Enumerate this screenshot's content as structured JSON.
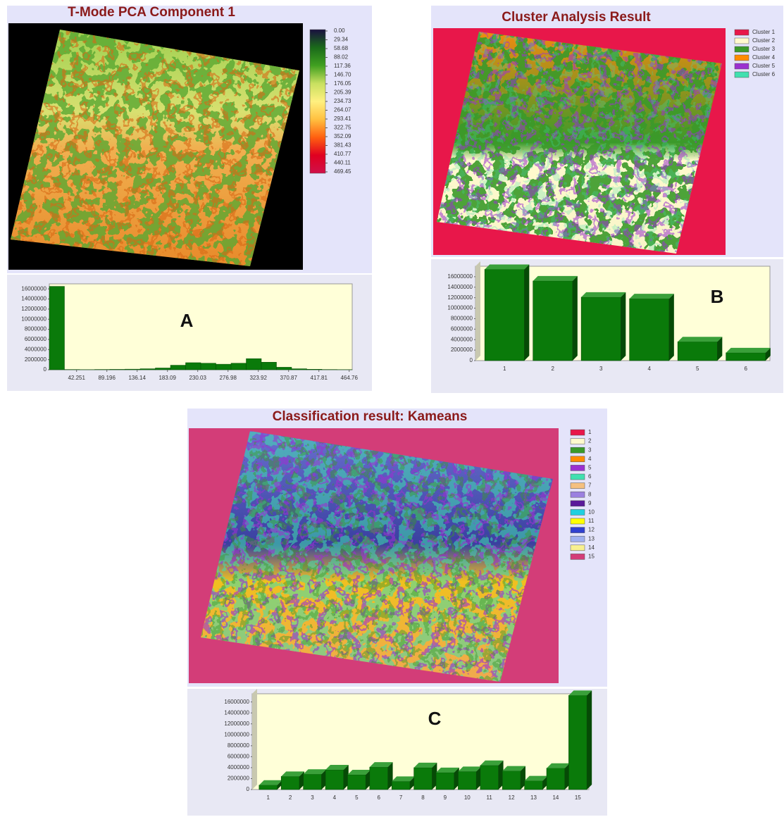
{
  "chart_data": [
    {
      "type": "histogram",
      "title": "T-Mode PCA Component 1",
      "label": "A",
      "colorbar_lim": [
        0,
        469.45
      ],
      "colorbar_colors": [
        "#1a1040",
        "#1a6a1a",
        "#40a020",
        "#c8e060",
        "#fff080",
        "#ffc040",
        "#ff6010",
        "#e00020",
        "#d0104a"
      ],
      "colorbar_ticks": [
        {
          "value": 0,
          "label": "0.00"
        },
        29.34,
        58.68,
        88.02,
        117.36,
        {
          "value": 146.7,
          "label": "146.70"
        },
        176.05,
        205.39,
        234.73,
        264.07,
        293.41,
        322.75,
        352.09,
        381.43,
        410.77,
        440.11,
        469.45
      ],
      "bins": [
        0,
        23.47,
        46.95,
        70.42,
        93.89,
        117.36,
        140.84,
        164.31,
        187.78,
        211.25,
        234.73,
        258.2,
        281.67,
        305.14,
        328.62,
        352.09,
        375.56,
        399.03,
        422.51,
        445.98,
        469.45
      ],
      "values": [
        16500000,
        50000,
        30000,
        60000,
        80000,
        120000,
        200000,
        350000,
        900000,
        1400000,
        1300000,
        1100000,
        1300000,
        2200000,
        1500000,
        500000,
        200000,
        100000,
        50000,
        30000
      ],
      "color": "#0a7a0a",
      "xlim": [
        0,
        469.45
      ],
      "xticks": [
        42.251,
        89.196,
        136.14,
        183.09,
        230.03,
        276.98,
        323.92,
        370.87,
        417.81,
        464.76
      ],
      "ylim": [
        0,
        17000000
      ],
      "yticks": [
        0,
        2000000,
        4000000,
        6000000,
        8000000,
        10000000,
        12000000,
        14000000,
        16000000
      ]
    },
    {
      "type": "bar",
      "title": "Cluster Analysis Result",
      "label": "B",
      "legend": [
        {
          "name": "Cluster 1",
          "color": "#e8174a"
        },
        {
          "name": "Cluster 2",
          "color": "#fffacd"
        },
        {
          "name": "Cluster 3",
          "color": "#3a9a2a"
        },
        {
          "name": "Cluster 4",
          "color": "#ff8c00"
        },
        {
          "name": "Cluster 5",
          "color": "#9b30d0"
        },
        {
          "name": "Cluster 6",
          "color": "#40e0b0"
        }
      ],
      "categories": [
        "1",
        "2",
        "3",
        "4",
        "5",
        "6"
      ],
      "values": [
        17400000,
        15200000,
        12100000,
        11800000,
        3600000,
        1500000
      ],
      "color": "#0a7a0a",
      "ylim": [
        0,
        18000000
      ],
      "yticks": [
        0,
        2000000,
        4000000,
        6000000,
        8000000,
        10000000,
        12000000,
        14000000,
        16000000
      ]
    },
    {
      "type": "bar",
      "title": "Classification result: Kameans",
      "label": "C",
      "legend": [
        {
          "name": "1",
          "color": "#e8174a"
        },
        {
          "name": "2",
          "color": "#fffacd"
        },
        {
          "name": "3",
          "color": "#3a9a2a"
        },
        {
          "name": "4",
          "color": "#ff8c00"
        },
        {
          "name": "5",
          "color": "#9b30d0"
        },
        {
          "name": "6",
          "color": "#40e0b0"
        },
        {
          "name": "7",
          "color": "#f5c080"
        },
        {
          "name": "8",
          "color": "#9b80e0"
        },
        {
          "name": "9",
          "color": "#5a1a9a"
        },
        {
          "name": "10",
          "color": "#20d0e0"
        },
        {
          "name": "11",
          "color": "#ffff00"
        },
        {
          "name": "12",
          "color": "#3040d0"
        },
        {
          "name": "13",
          "color": "#a0b0f0"
        },
        {
          "name": "14",
          "color": "#f8f090"
        },
        {
          "name": "15",
          "color": "#d33d78"
        }
      ],
      "categories": [
        "1",
        "2",
        "3",
        "4",
        "5",
        "6",
        "7",
        "8",
        "9",
        "10",
        "11",
        "12",
        "13",
        "14",
        "15"
      ],
      "values": [
        800000,
        2400000,
        2800000,
        3600000,
        2700000,
        4100000,
        1500000,
        4000000,
        3100000,
        3300000,
        4400000,
        3400000,
        1600000,
        3900000,
        17200000
      ],
      "color": "#0a7a0a",
      "ylim": [
        0,
        17500000
      ],
      "yticks": [
        0,
        2000000,
        4000000,
        6000000,
        8000000,
        10000000,
        12000000,
        14000000,
        16000000
      ]
    }
  ]
}
